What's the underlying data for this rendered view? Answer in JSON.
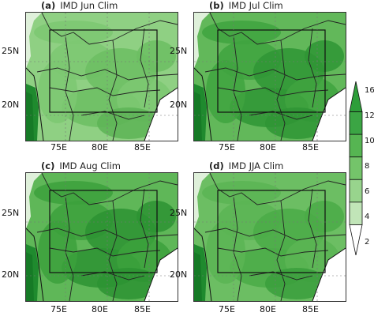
{
  "panels": [
    {
      "label": "(a)",
      "title": "IMD  Jun  Clim",
      "intensity": 0
    },
    {
      "label": "(b)",
      "title": "IMD  Jul  Clim",
      "intensity": 2
    },
    {
      "label": "(c)",
      "title": "IMD  Aug  Clim",
      "intensity": 2
    },
    {
      "label": "(d)",
      "title": "IMD  JJA  Clim",
      "intensity": 1
    }
  ],
  "axes": {
    "lat_ticks": [
      "25N",
      "20N"
    ],
    "lon_ticks": [
      "75E",
      "80E",
      "85E"
    ]
  },
  "colorbar": {
    "ticks": [
      "16",
      "12",
      "10",
      "8",
      "6",
      "4",
      "2"
    ],
    "colors": [
      "#2e9e3a",
      "#3ba544",
      "#56b552",
      "#74c46a",
      "#98d48d",
      "#c1e5b8",
      "#ffffff"
    ]
  }
}
